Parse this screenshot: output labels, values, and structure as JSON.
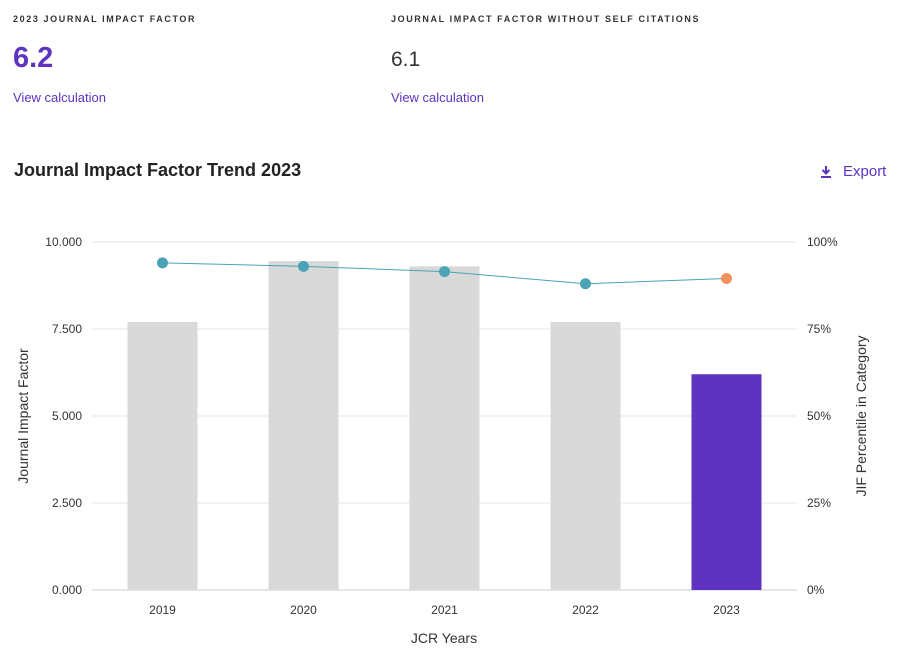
{
  "metrics": {
    "jif": {
      "label": "2023 JOURNAL IMPACT FACTOR",
      "value": "6.2",
      "link": "View calculation"
    },
    "jif_no_self": {
      "label": "JOURNAL IMPACT FACTOR WITHOUT SELF CITATIONS",
      "value": "6.1",
      "link": "View calculation"
    }
  },
  "trend": {
    "title": "Journal Impact Factor Trend 2023",
    "export_label": "Export",
    "export_icon": "download-icon"
  },
  "colors": {
    "accent": "#5e33bf",
    "bar": "#d9d9d9",
    "line": "#4ba3b5",
    "highlight_point": "#f0925a"
  },
  "chart_data": {
    "type": "bar",
    "categories": [
      "2019",
      "2020",
      "2021",
      "2022",
      "2023"
    ],
    "series": [
      {
        "axis": "left",
        "type": "bar",
        "values": [
          7.7,
          9.45,
          9.3,
          7.7,
          6.2
        ]
      },
      {
        "axis": "right",
        "type": "line",
        "values": [
          94,
          93,
          91.5,
          88,
          89.5
        ]
      }
    ],
    "xlabel": "JCR Years",
    "ylabel": "Journal Impact Factor",
    "ylabel_right": "JIF Percentile in Category",
    "ylim": [
      0,
      10
    ],
    "ylim_right": [
      0,
      100
    ],
    "yticks": [
      "0.000",
      "2.500",
      "5.000",
      "7.500",
      "10.000"
    ],
    "yticks_right": [
      "0%",
      "25%",
      "50%",
      "75%",
      "100%"
    ],
    "highlight_category": "2023",
    "grid": true
  }
}
